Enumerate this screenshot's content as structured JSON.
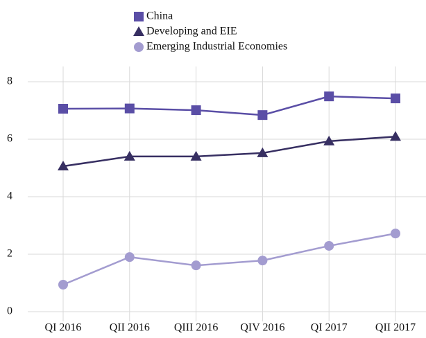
{
  "chart_data": {
    "type": "line",
    "categories": [
      "QI 2016",
      "QII 2016",
      "QIII 2016",
      "QIV 2016",
      "QI 2017",
      "QII 2017"
    ],
    "series": [
      {
        "name": "China",
        "color": "#5a4ea6",
        "marker": "square",
        "values": [
          7.06,
          7.07,
          7.01,
          6.84,
          7.49,
          7.42
        ]
      },
      {
        "name": "Developing and EIE",
        "color": "#372f62",
        "marker": "triangle",
        "values": [
          5.06,
          5.4,
          5.4,
          5.52,
          5.93,
          6.09
        ]
      },
      {
        "name": "Emerging Industrial Economies",
        "color": "#a39cd0",
        "marker": "circle",
        "values": [
          0.94,
          1.9,
          1.61,
          1.78,
          2.29,
          2.72
        ]
      }
    ],
    "ylim": [
      0,
      8
    ],
    "yticks": [
      0,
      2,
      4,
      6,
      8
    ],
    "grid": true
  }
}
